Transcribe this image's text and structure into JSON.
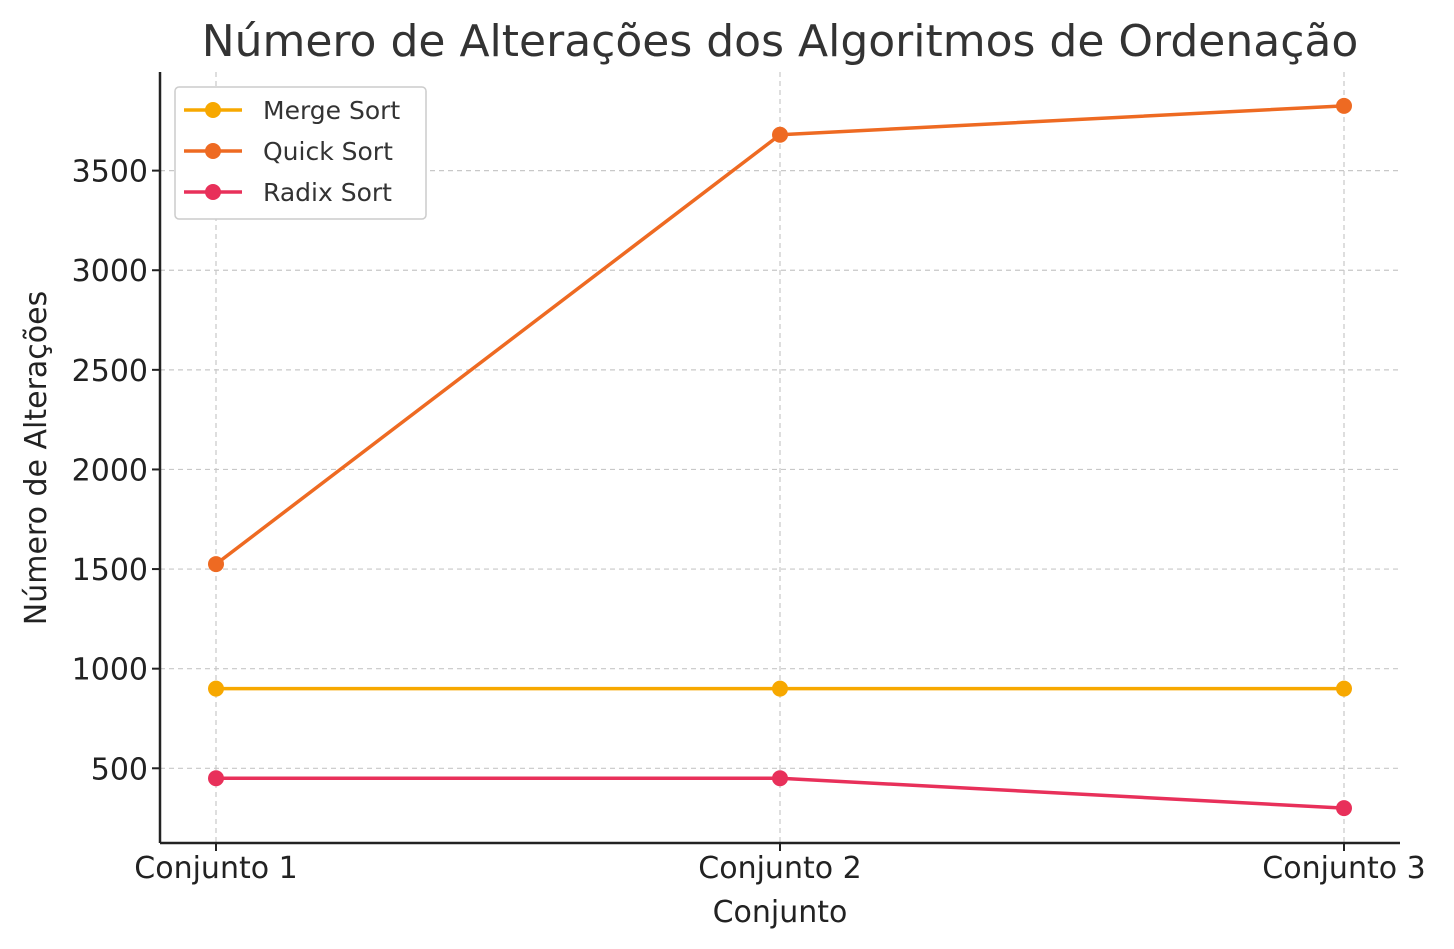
{
  "chart_data": {
    "type": "line",
    "title": "Número de Alterações dos Algoritmos de Ordenação",
    "xlabel": "Conjunto",
    "ylabel": "Número de Alterações",
    "categories": [
      "Conjunto 1",
      "Conjunto 2",
      "Conjunto 3"
    ],
    "ylim": [
      125,
      3995
    ],
    "yticks": [
      500,
      1000,
      1500,
      2000,
      2500,
      3000,
      3500
    ],
    "grid": true,
    "legend_position": "top-left",
    "series": [
      {
        "name": "Merge Sort",
        "color": "#F7A800",
        "values": [
          900,
          900,
          900
        ]
      },
      {
        "name": "Quick Sort",
        "color": "#EE6A22",
        "values": [
          1525,
          3680,
          3825
        ]
      },
      {
        "name": "Radix Sort",
        "color": "#E8305A",
        "values": [
          450,
          450,
          300
        ]
      }
    ]
  }
}
